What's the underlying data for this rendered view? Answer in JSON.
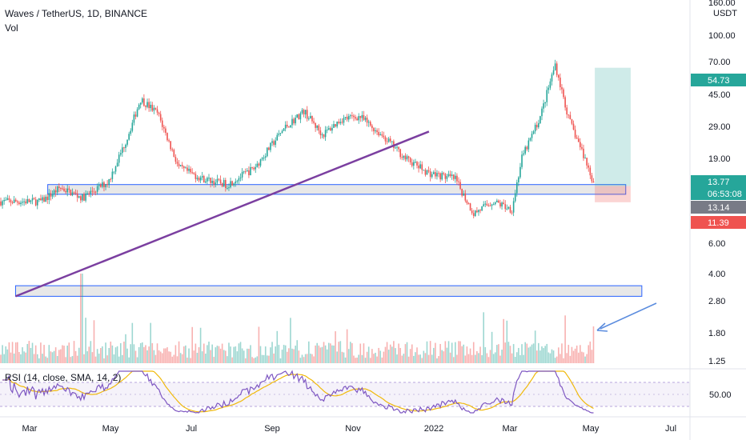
{
  "header": {
    "title": "Waves / TetherUS, 1D, BINANCE",
    "vol_label": "Vol"
  },
  "rsi": {
    "label": "RSI (14, close, SMA, 14, 2)",
    "level_label": "50.00"
  },
  "price_axis": {
    "unit": "USDT",
    "ticks": [
      "160.00",
      "100.00",
      "70.00",
      "45.00",
      "29.00",
      "19.00",
      "6.00",
      "4.00",
      "2.80",
      "1.80",
      "1.25"
    ],
    "badges": [
      {
        "text": "54.73",
        "color": "#26a69a"
      },
      {
        "text": "13.77",
        "color": "#26a69a"
      },
      {
        "text": "06:53:08",
        "color": "#26a69a"
      },
      {
        "text": "13.14",
        "color": "#787b86"
      },
      {
        "text": "11.39",
        "color": "#ef5350"
      }
    ]
  },
  "time_axis": {
    "ticks": [
      "Mar",
      "May",
      "Jul",
      "Sep",
      "Nov",
      "2022",
      "Mar",
      "May",
      "Jul"
    ]
  },
  "colors": {
    "up": "#26a69a",
    "down": "#ef5350",
    "trendline": "#7b3fa0",
    "zone_border": "#2962ff",
    "arrow": "#5b8cde",
    "rsi_line": "#7e57c2",
    "rsi_ma": "#f0b90b"
  },
  "chart_data": {
    "type": "candlestick",
    "scale": "log",
    "price_path": [
      {
        "x": "2021-02-10",
        "y": 11.5
      },
      {
        "x": "2021-02-25",
        "y": 13.5
      },
      {
        "x": "2021-03-15",
        "y": 12.0
      },
      {
        "x": "2021-04-05",
        "y": 14.5
      },
      {
        "x": "2021-04-20",
        "y": 24.0
      },
      {
        "x": "2021-05-01",
        "y": 38.0
      },
      {
        "x": "2021-05-15",
        "y": 32.0
      },
      {
        "x": "2021-06-01",
        "y": 17.0
      },
      {
        "x": "2021-06-20",
        "y": 15.0
      },
      {
        "x": "2021-07-10",
        "y": 14.0
      },
      {
        "x": "2021-08-01",
        "y": 17.0
      },
      {
        "x": "2021-08-25",
        "y": 27.0
      },
      {
        "x": "2021-09-10",
        "y": 33.0
      },
      {
        "x": "2021-09-25",
        "y": 25.0
      },
      {
        "x": "2021-10-10",
        "y": 30.0
      },
      {
        "x": "2021-10-25",
        "y": 31.0
      },
      {
        "x": "2021-11-15",
        "y": 24.0
      },
      {
        "x": "2021-12-01",
        "y": 19.0
      },
      {
        "x": "2021-12-20",
        "y": 16.0
      },
      {
        "x": "2022-01-10",
        "y": 15.0
      },
      {
        "x": "2022-01-25",
        "y": 10.0
      },
      {
        "x": "2022-02-10",
        "y": 11.5
      },
      {
        "x": "2022-02-25",
        "y": 10.5
      },
      {
        "x": "2022-03-05",
        "y": 19.0
      },
      {
        "x": "2022-03-20",
        "y": 31.0
      },
      {
        "x": "2022-04-01",
        "y": 57.0
      },
      {
        "x": "2022-04-12",
        "y": 30.0
      },
      {
        "x": "2022-04-25",
        "y": 19.0
      },
      {
        "x": "2022-05-03",
        "y": 13.77
      }
    ],
    "trendline": [
      {
        "x": "2021-01-20",
        "y": 3.8
      },
      {
        "x": "2021-12-20",
        "y": 26.0
      }
    ],
    "support_zones": [
      {
        "from": "2021-02-15",
        "to": "2022-05-28",
        "low": 12.5,
        "high": 14.0
      },
      {
        "from": "2021-01-20",
        "to": "2022-06-10",
        "low": 3.8,
        "high": 4.3
      }
    ],
    "position": {
      "entry": 13.77,
      "target": 54.73,
      "stop": 11.39,
      "from": "2022-05-03",
      "to": "2022-06-01"
    },
    "last_price": 13.77,
    "rsi_level": 50.0
  }
}
